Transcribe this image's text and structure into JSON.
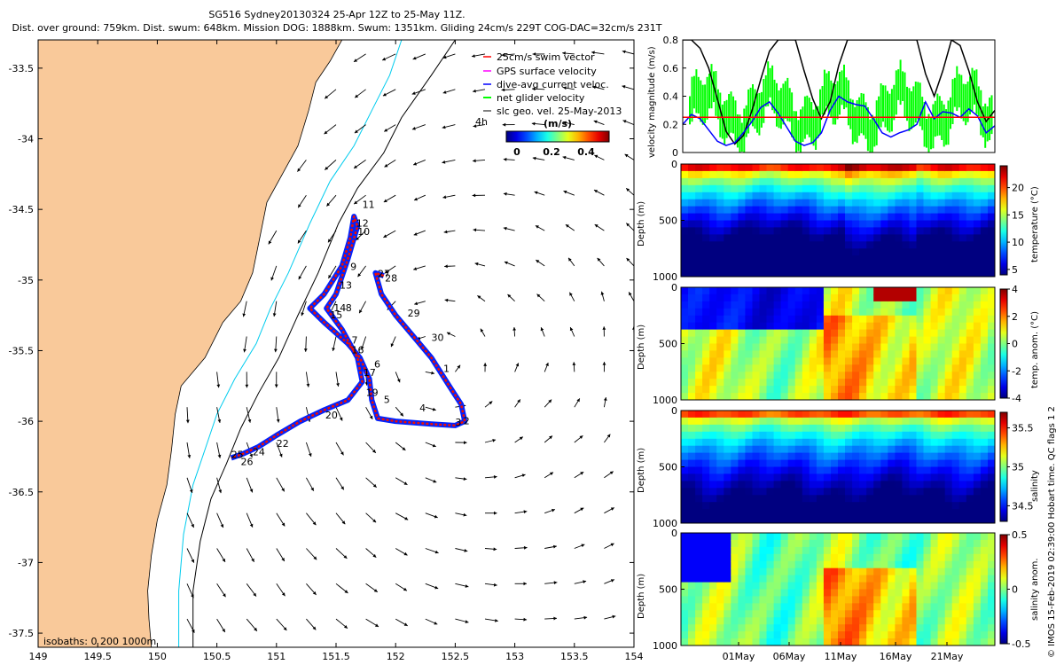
{
  "header": {
    "line1": "SG516 Sydney20130324 25-Apr 12Z to 25-May 11Z.",
    "line2": "Dist. over ground: 759km. Dist. swum: 648km. Mission DOG: 1888km. Swum: 1351km. Gliding 24cm/s 229T COG-DAC=32cm/s 231T"
  },
  "credit": "© IMOS 15-Feb-2019 02:39:00 Hobart time. QC flags 1 2",
  "colors": {
    "land": "#f9c99a",
    "coast_isobath": "#000000",
    "shelf_isobath": "#00ccee",
    "swim_vector": "#ff0000",
    "gps_velocity": "#ff00ff",
    "dac_velocity": "#0000ff",
    "net_velocity": "#00ff00",
    "track_blue": "#0022ff",
    "track_red": "#ee1100"
  },
  "chart_data": [
    {
      "type": "map",
      "xlim": [
        149.0,
        154.0
      ],
      "ylim": [
        -37.6,
        -33.3
      ],
      "x_ticks": [
        "149",
        "149.5",
        "150",
        "150.5",
        "151",
        "151.5",
        "152",
        "152.5",
        "153",
        "153.5",
        "154"
      ],
      "y_ticks": [
        "-33.5",
        "-34",
        "-34.5",
        "-35",
        "-35.5",
        "-36",
        "-36.5",
        "-37",
        "-37.5"
      ],
      "legend": {
        "position": "top-right",
        "entries": [
          "25cm/s swim vector",
          "GPS surface velocity",
          "dive-avg current veloc.",
          "net glider velocity",
          "slc geo. vel. 25-May-2013"
        ],
        "colorbar_label": "(m/s)",
        "colorbar_ticks": [
          "0",
          "0.2",
          "0.4"
        ],
        "scale_label": "4h"
      },
      "isobath_label": "isobaths: 0   200  1000m",
      "track_labels": [
        {
          "t": "1",
          "lon": 152.4,
          "lat": -35.65
        },
        {
          "t": "2",
          "lon": 152.57,
          "lat": -36.02
        },
        {
          "t": "3",
          "lon": 152.5,
          "lat": -36.03
        },
        {
          "t": "4",
          "lon": 152.2,
          "lat": -35.93
        },
        {
          "t": "5",
          "lon": 151.9,
          "lat": -35.87
        },
        {
          "t": "6",
          "lon": 151.82,
          "lat": -35.62
        },
        {
          "t": "7",
          "lon": 151.63,
          "lat": -35.45
        },
        {
          "t": "8",
          "lon": 151.58,
          "lat": -35.22
        },
        {
          "t": "9",
          "lon": 151.62,
          "lat": -34.93
        },
        {
          "t": "10",
          "lon": 151.68,
          "lat": -34.68
        },
        {
          "t": "11",
          "lon": 151.72,
          "lat": -34.49
        },
        {
          "t": "12",
          "lon": 151.67,
          "lat": -34.62
        },
        {
          "t": "13",
          "lon": 151.53,
          "lat": -35.06
        },
        {
          "t": "14",
          "lon": 151.48,
          "lat": -35.22
        },
        {
          "t": "15",
          "lon": 151.45,
          "lat": -35.27
        },
        {
          "t": "16",
          "lon": 151.63,
          "lat": -35.52
        },
        {
          "t": "17",
          "lon": 151.73,
          "lat": -35.68
        },
        {
          "t": "19",
          "lon": 151.75,
          "lat": -35.82
        },
        {
          "t": "20",
          "lon": 151.41,
          "lat": -35.98
        },
        {
          "t": "22",
          "lon": 151.0,
          "lat": -36.18
        },
        {
          "t": "24",
          "lon": 150.8,
          "lat": -36.24
        },
        {
          "t": "25",
          "lon": 150.62,
          "lat": -36.26
        },
        {
          "t": "26",
          "lon": 150.7,
          "lat": -36.31
        },
        {
          "t": "27",
          "lon": 151.85,
          "lat": -34.98
        },
        {
          "t": "28",
          "lon": 151.91,
          "lat": -35.01
        },
        {
          "t": "29",
          "lon": 152.1,
          "lat": -35.26
        },
        {
          "t": "30",
          "lon": 152.3,
          "lat": -35.43
        }
      ]
    },
    {
      "type": "line",
      "ylabel": "velocity magnitude (m/s)",
      "ylim": [
        0,
        0.8
      ],
      "y_ticks": [
        "0",
        "0.2",
        "0.4",
        "0.6",
        "0.8"
      ],
      "series": [
        {
          "color": "#000000",
          "values": [
            0.8,
            0.8,
            0.74,
            0.6,
            0.38,
            0.15,
            0.06,
            0.12,
            0.3,
            0.52,
            0.72,
            0.8,
            0.8,
            0.8,
            0.58,
            0.38,
            0.24,
            0.36,
            0.62,
            0.8,
            0.8,
            0.8,
            0.8,
            0.8,
            0.8,
            0.8,
            0.8,
            0.8,
            0.56,
            0.4,
            0.58,
            0.8,
            0.76,
            0.58,
            0.36,
            0.22,
            0.3
          ]
        },
        {
          "color": "#0000ff",
          "values": [
            0.2,
            0.27,
            0.24,
            0.16,
            0.08,
            0.05,
            0.07,
            0.14,
            0.22,
            0.32,
            0.36,
            0.28,
            0.18,
            0.08,
            0.05,
            0.07,
            0.14,
            0.3,
            0.4,
            0.36,
            0.34,
            0.33,
            0.24,
            0.14,
            0.11,
            0.14,
            0.16,
            0.2,
            0.36,
            0.24,
            0.29,
            0.28,
            0.25,
            0.31,
            0.26,
            0.14,
            0.19
          ]
        },
        {
          "color": "#ff0000",
          "values": [
            0.25,
            0.25
          ]
        }
      ]
    },
    {
      "type": "heatmap",
      "variable": "temperature",
      "ylabel": "Depth (m)",
      "ylim": [
        1000,
        0
      ],
      "y_ticks": [
        "0",
        "500",
        "1000"
      ],
      "colorbar_label": "temperature (°C)",
      "colorbar_ticks": [
        "5",
        "10",
        "15",
        "20"
      ],
      "colorbar_range": [
        4,
        24
      ]
    },
    {
      "type": "heatmap",
      "variable": "temperature anomaly",
      "ylabel": "Depth (m)",
      "ylim": [
        1000,
        0
      ],
      "y_ticks": [
        "0",
        "500",
        "1000"
      ],
      "colorbar_label": "temp. anom. (°C)",
      "colorbar_ticks": [
        "-4",
        "-2",
        "0",
        "2",
        "4"
      ],
      "colorbar_range": [
        -4,
        4
      ]
    },
    {
      "type": "heatmap",
      "variable": "salinity",
      "ylabel": "Depth (m)",
      "ylim": [
        1000,
        0
      ],
      "y_ticks": [
        "0",
        "500",
        "1000"
      ],
      "colorbar_label": "salinity",
      "colorbar_ticks": [
        "34.5",
        "35",
        "35.5"
      ],
      "colorbar_range": [
        34.3,
        35.7
      ]
    },
    {
      "type": "heatmap",
      "variable": "salinity anomaly",
      "ylabel": "Depth (m)",
      "ylim": [
        1000,
        0
      ],
      "y_ticks": [
        "0",
        "500",
        "1000"
      ],
      "colorbar_label": "salinity anom.",
      "colorbar_ticks": [
        "-0.5",
        "0",
        "0.5"
      ],
      "colorbar_range": [
        -0.5,
        0.5
      ],
      "x_ticks": [
        "01May",
        "06May",
        "11May",
        "16May",
        "21May"
      ]
    }
  ]
}
